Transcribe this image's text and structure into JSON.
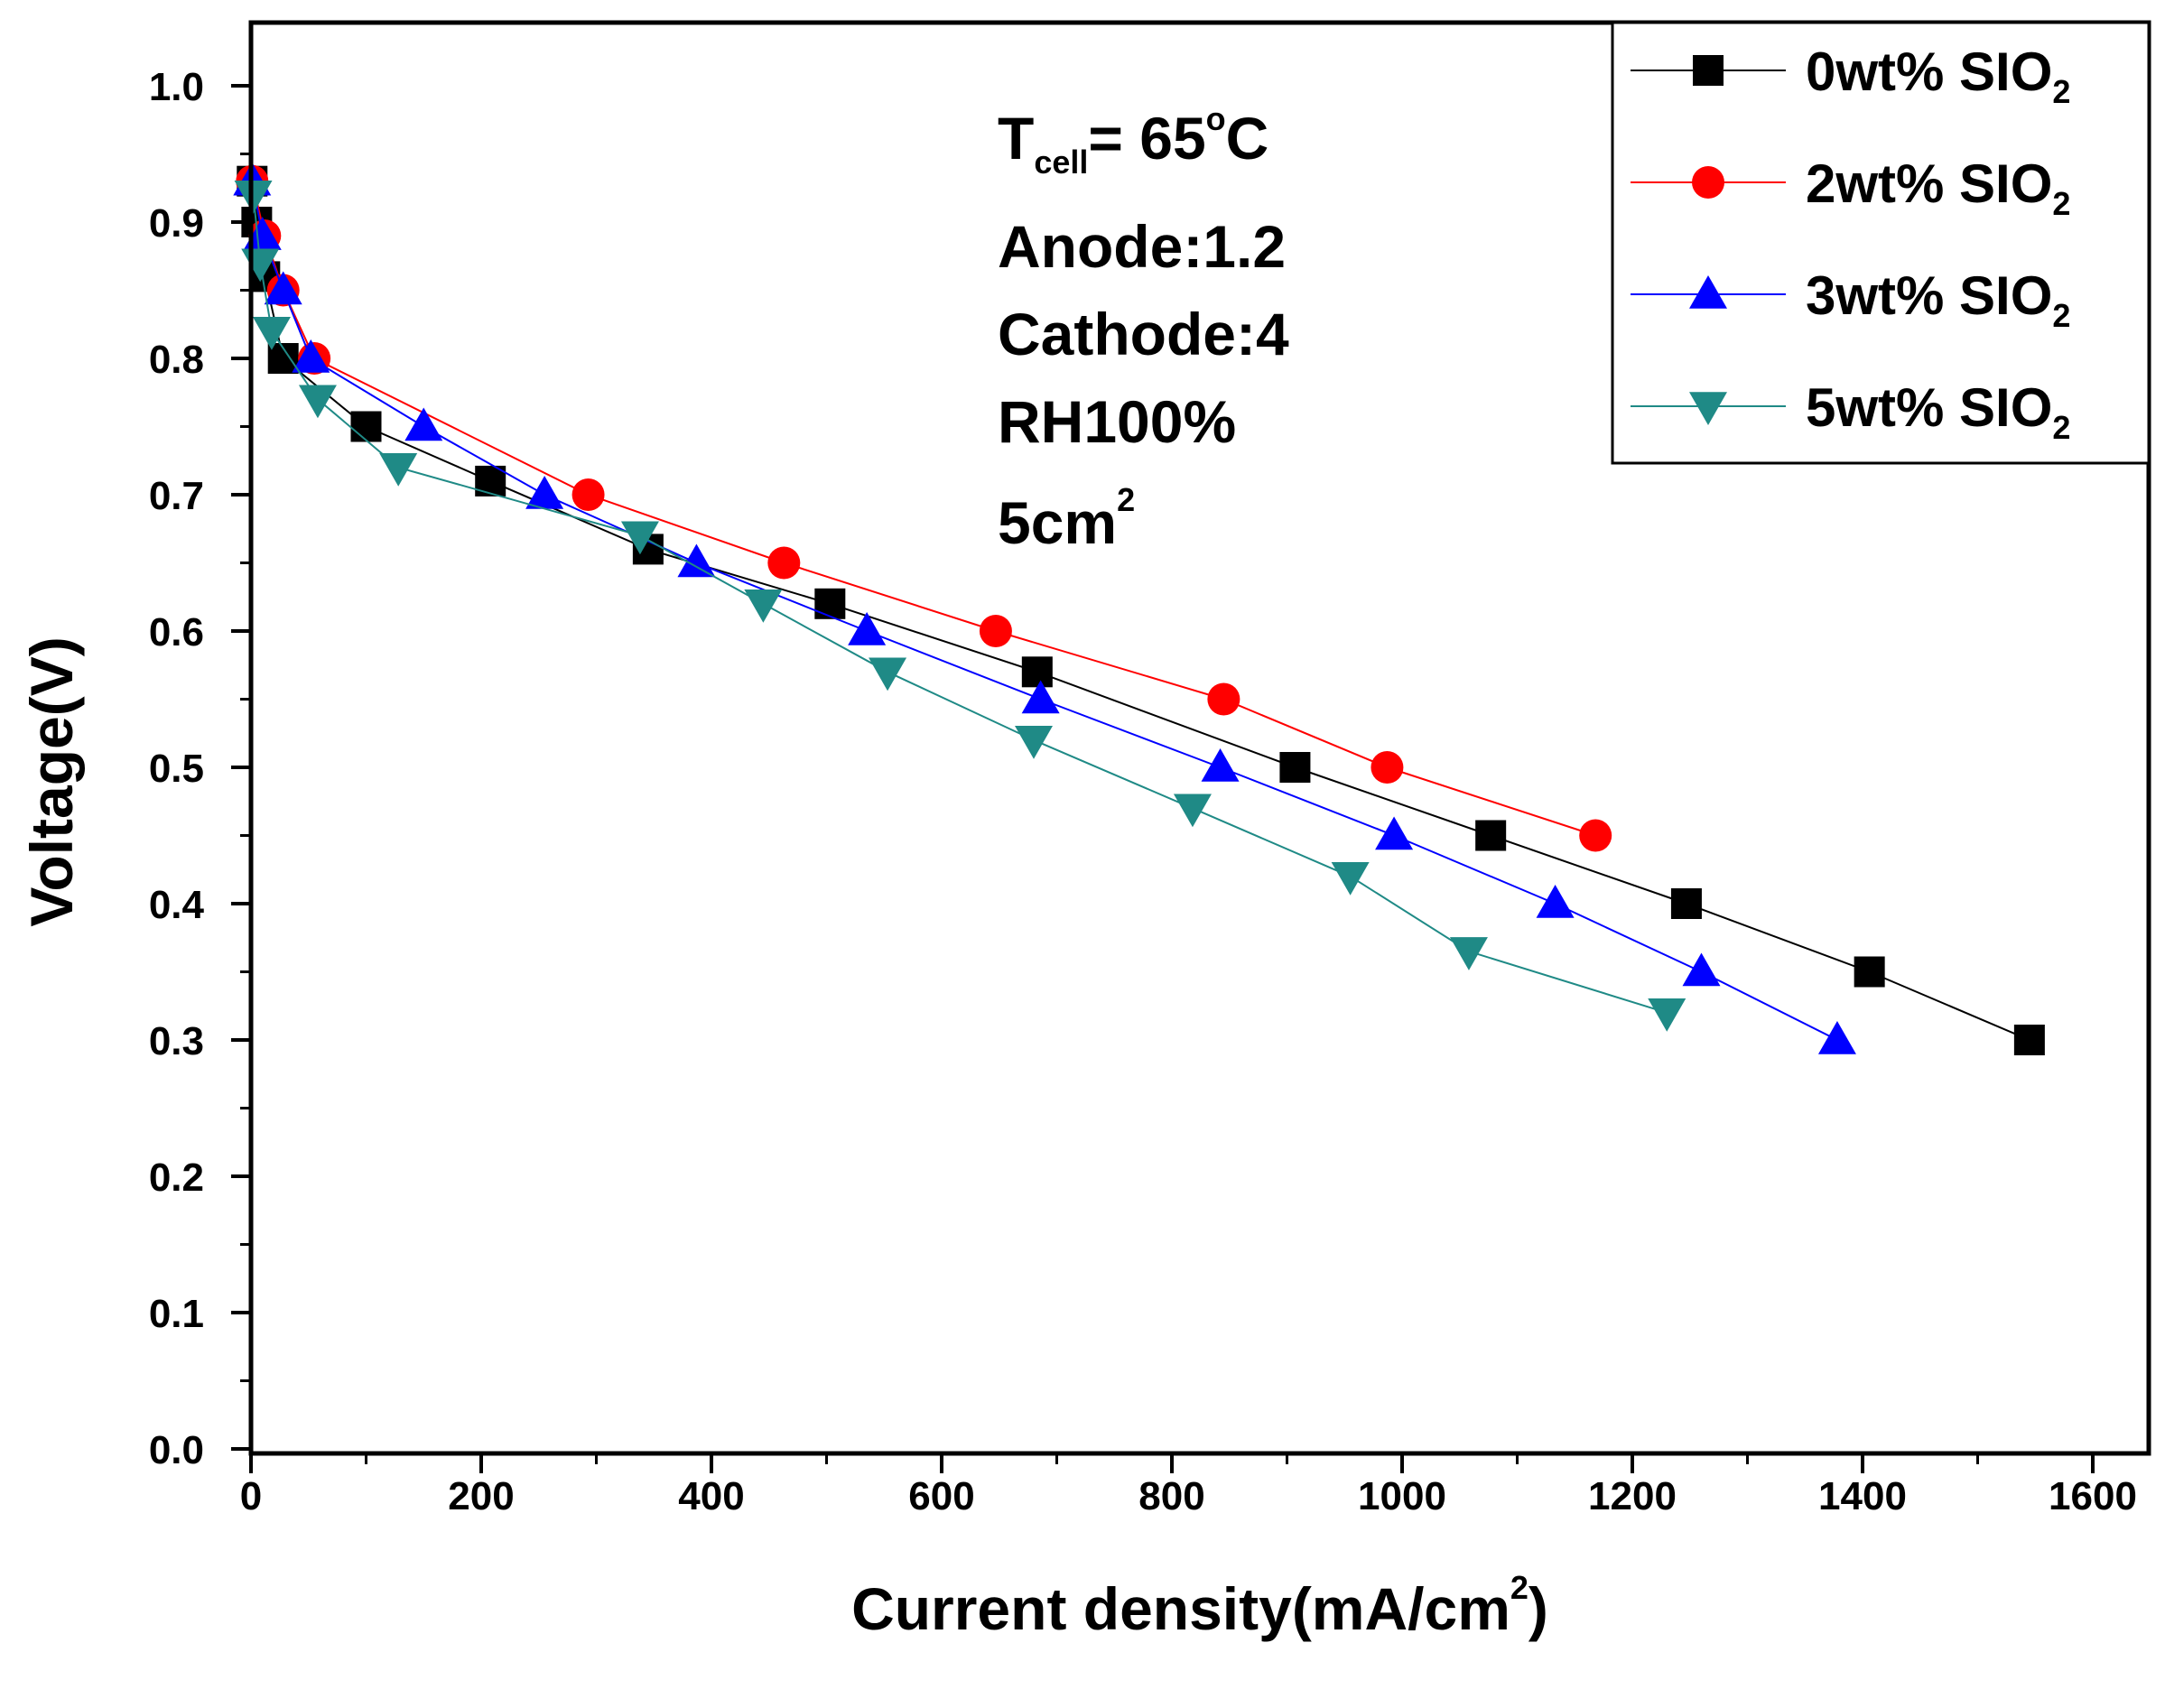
{
  "chart_data": {
    "type": "line",
    "xlabel": "Current density(mA/cm",
    "xlabel_sup": "2",
    "xlabel_end": ")",
    "ylabel": "Voltage(V)",
    "xlim": [
      0,
      1600
    ],
    "ylim": [
      0.0,
      1.05
    ],
    "x_ticks": [
      "0",
      "200",
      "400",
      "600",
      "800",
      "1000",
      "1200",
      "1400",
      "1600"
    ],
    "y_ticks": [
      "0.0",
      "0.1",
      "0.2",
      "0.3",
      "0.4",
      "0.5",
      "0.6",
      "0.7",
      "0.8",
      "0.9",
      "1.0"
    ],
    "legend_position": "top-right",
    "annotations": {
      "tcell_prefix": "T",
      "tcell_sub": "cell",
      "tcell_value": "= 65",
      "tcell_deg": "o",
      "tcell_unit": "C",
      "anode": "Anode:1.2",
      "cathode": "Cathode:4",
      "rh": "RH100%",
      "area": "5cm",
      "area_sup": "2"
    },
    "series": [
      {
        "name": "0wt% SIO",
        "name_sub": "2",
        "color": "#000000",
        "marker": "square",
        "x": [
          1,
          5,
          12,
          28,
          100,
          208,
          345,
          503,
          683,
          907,
          1077,
          1247,
          1406,
          1545
        ],
        "y": [
          0.93,
          0.9,
          0.86,
          0.8,
          0.75,
          0.71,
          0.66,
          0.62,
          0.57,
          0.5,
          0.45,
          0.4,
          0.35,
          0.3
        ]
      },
      {
        "name": "2wt% SIO",
        "name_sub": "2",
        "color": "#ff0000",
        "marker": "circle",
        "x": [
          1,
          12,
          28,
          55,
          293,
          463,
          647,
          845,
          987,
          1168
        ],
        "y": [
          0.93,
          0.89,
          0.85,
          0.8,
          0.7,
          0.65,
          0.6,
          0.55,
          0.5,
          0.45
        ]
      },
      {
        "name": "3wt% SIO",
        "name_sub": "2",
        "color": "#0000ff",
        "marker": "triangle-up",
        "x": [
          1,
          10,
          28,
          52,
          150,
          255,
          387,
          535,
          686,
          842,
          993,
          1133,
          1260,
          1378
        ],
        "y": [
          0.93,
          0.89,
          0.85,
          0.8,
          0.75,
          0.7,
          0.65,
          0.6,
          0.55,
          0.5,
          0.45,
          0.4,
          0.35,
          0.3
        ]
      },
      {
        "name": "5wt% SIO",
        "name_sub": "2",
        "color": "#1f8a86",
        "marker": "triangle-down",
        "x": [
          2,
          8,
          18,
          58,
          128,
          338,
          445,
          553,
          680,
          818,
          955,
          1058,
          1230
        ],
        "y": [
          0.92,
          0.87,
          0.82,
          0.77,
          0.72,
          0.67,
          0.62,
          0.57,
          0.52,
          0.47,
          0.42,
          0.365,
          0.32
        ]
      }
    ]
  }
}
